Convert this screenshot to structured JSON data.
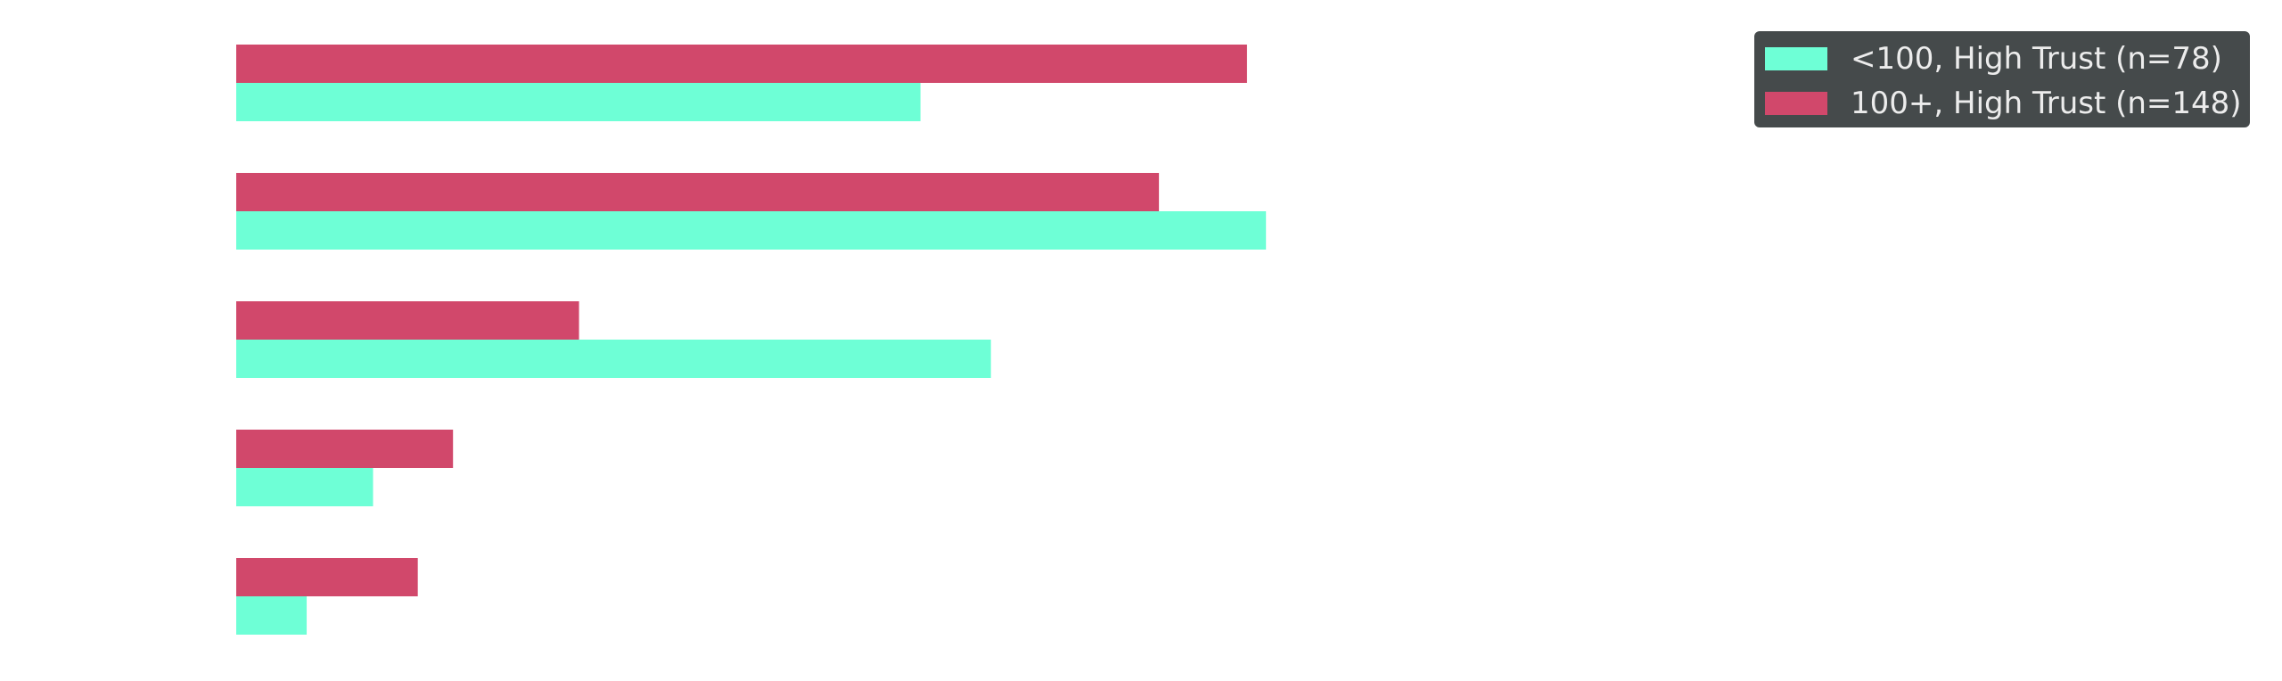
{
  "chart_data": {
    "type": "bar",
    "orientation": "horizontal",
    "categories": [
      "",
      "",
      "",
      "",
      ""
    ],
    "series": [
      {
        "name": "<100, High Trust (n=78)",
        "color": "#6effd6",
        "values": [
          0.505,
          0.76,
          0.557,
          0.101,
          0.052
        ]
      },
      {
        "name": "100+, High Trust (n=148)",
        "color": "#d1486b",
        "values": [
          0.746,
          0.681,
          0.253,
          0.16,
          0.134
        ]
      }
    ],
    "xlim": [
      0,
      1.0
    ],
    "grid": false,
    "legend_placement": "top-right"
  }
}
